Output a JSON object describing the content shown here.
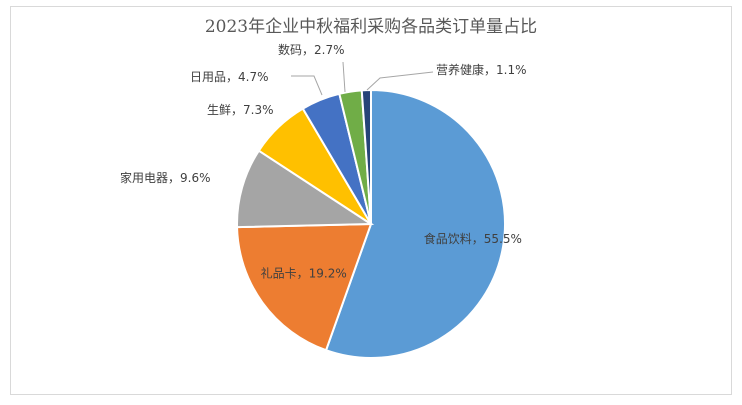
{
  "chart_data": {
    "type": "pie",
    "title": "2023年企业中秋福利采购各品类订单量占比",
    "slices": [
      {
        "label": "食品饮料",
        "value": 55.5,
        "text": "55.5%",
        "color": "#5B9BD5"
      },
      {
        "label": "礼品卡",
        "value": 19.2,
        "text": "19.2%",
        "color": "#ED7D31"
      },
      {
        "label": "家用电器",
        "value": 9.6,
        "text": "9.6%",
        "color": "#A5A5A5"
      },
      {
        "label": "生鲜",
        "value": 7.3,
        "text": "7.3%",
        "color": "#FFC000"
      },
      {
        "label": "日用品",
        "value": 4.7,
        "text": "4.7%",
        "color": "#4472C4"
      },
      {
        "label": "数码",
        "value": 2.7,
        "text": "2.7%",
        "color": "#70AD47"
      },
      {
        "label": "营养健康",
        "value": 1.1,
        "text": "1.1%",
        "color": "#264478"
      }
    ],
    "legend": "none",
    "data_labels": "category, percent"
  }
}
